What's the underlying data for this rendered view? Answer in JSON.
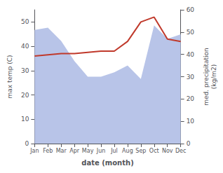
{
  "chart_data": {
    "type": "line",
    "categories": [
      "Jan",
      "Feb",
      "Mar",
      "Apr",
      "May",
      "Jun",
      "Jul",
      "Aug",
      "Sep",
      "Oct",
      "Nov",
      "Dec"
    ],
    "series": [
      {
        "type": "area",
        "axis": "y2",
        "color": "#b8c4e8",
        "values": [
          51,
          52,
          46,
          37,
          30,
          30,
          32,
          35,
          29,
          53,
          47,
          49
        ]
      },
      {
        "type": "line",
        "color": "#c0392b",
        "values": [
          36,
          36.5,
          37,
          37,
          37.5,
          38,
          38,
          42,
          50,
          52,
          43,
          42
        ]
      }
    ],
    "xlabel": "date (month)",
    "ylabel": "max temp (C)",
    "y2label": "med. precipitation\n(kg/m2)",
    "ylim": [
      0,
      55
    ],
    "yticks": [
      0,
      10,
      20,
      30,
      40,
      50
    ],
    "y2lim": [
      0,
      60
    ],
    "y2ticks": [
      0,
      10,
      20,
      30,
      40,
      50,
      60
    ],
    "grid": false
  }
}
